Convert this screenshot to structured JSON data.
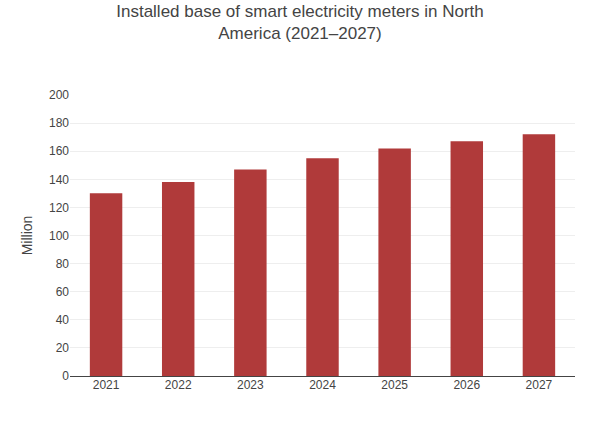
{
  "chart_data": {
    "type": "bar",
    "title": "Installed base of smart electricity meters in North\nAmerica (2021–2027)",
    "categories": [
      "2021",
      "2022",
      "2023",
      "2024",
      "2025",
      "2026",
      "2027"
    ],
    "values": [
      130,
      138,
      147,
      155,
      162,
      167,
      172
    ],
    "color": "#b03a3a",
    "ylabel": "Million",
    "ylim": [
      0,
      200
    ],
    "yticks": [
      0,
      20,
      40,
      60,
      80,
      100,
      120,
      140,
      160,
      180,
      200
    ],
    "grid": true
  }
}
